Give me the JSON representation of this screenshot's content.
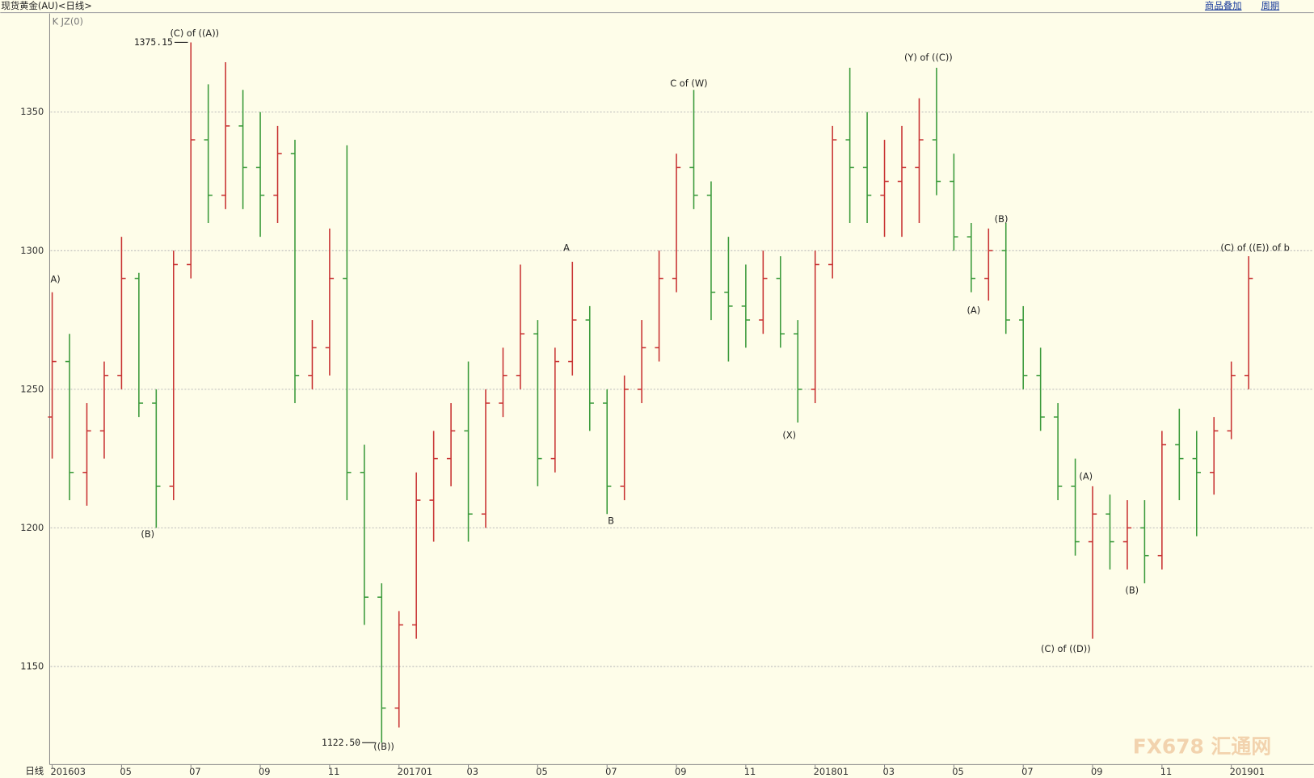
{
  "chart_data": {
    "type": "ohlc",
    "title": "现货黄金(AU)<日线>",
    "indicator": "K  JZ(0)",
    "toolbar": [
      "商品叠加",
      "周期"
    ],
    "period_label": "日线",
    "watermark": "FX678 汇通网",
    "categories": [
      "201603",
      null,
      null,
      null,
      "05",
      null,
      null,
      null,
      "07",
      null,
      null,
      null,
      "09",
      null,
      null,
      null,
      "11",
      null,
      null,
      null,
      "201701",
      null,
      null,
      null,
      "03",
      null,
      null,
      null,
      "05",
      null,
      null,
      null,
      "07",
      null,
      null,
      null,
      "09",
      null,
      null,
      null,
      "11",
      null,
      null,
      null,
      "201801",
      null,
      null,
      null,
      "03",
      null,
      null,
      null,
      "05",
      null,
      null,
      null,
      "07",
      null,
      null,
      null,
      "09",
      null,
      null,
      null,
      "11",
      null,
      null,
      null,
      "201901",
      null
    ],
    "ohlc": [
      [
        1240,
        1285,
        1225,
        1260
      ],
      [
        1260,
        1270,
        1210,
        1220
      ],
      [
        1220,
        1245,
        1208,
        1235
      ],
      [
        1235,
        1260,
        1225,
        1255
      ],
      [
        1255,
        1305,
        1250,
        1290
      ],
      [
        1290,
        1292,
        1240,
        1245
      ],
      [
        1245,
        1250,
        1200,
        1215
      ],
      [
        1215,
        1300,
        1210,
        1295
      ],
      [
        1295,
        1375.15,
        1290,
        1340
      ],
      [
        1340,
        1360,
        1310,
        1320
      ],
      [
        1320,
        1368,
        1315,
        1345
      ],
      [
        1345,
        1358,
        1315,
        1330
      ],
      [
        1330,
        1350,
        1305,
        1320
      ],
      [
        1320,
        1345,
        1310,
        1335
      ],
      [
        1335,
        1340,
        1245,
        1255
      ],
      [
        1255,
        1275,
        1250,
        1265
      ],
      [
        1265,
        1308,
        1255,
        1290
      ],
      [
        1290,
        1338,
        1210,
        1220
      ],
      [
        1220,
        1230,
        1165,
        1175
      ],
      [
        1175,
        1180,
        1122.5,
        1135
      ],
      [
        1135,
        1170,
        1128,
        1165
      ],
      [
        1165,
        1220,
        1160,
        1210
      ],
      [
        1210,
        1235,
        1195,
        1225
      ],
      [
        1225,
        1245,
        1215,
        1235
      ],
      [
        1235,
        1260,
        1195,
        1205
      ],
      [
        1205,
        1250,
        1200,
        1245
      ],
      [
        1245,
        1265,
        1240,
        1255
      ],
      [
        1255,
        1295,
        1250,
        1270
      ],
      [
        1270,
        1275,
        1215,
        1225
      ],
      [
        1225,
        1265,
        1220,
        1260
      ],
      [
        1260,
        1296,
        1255,
        1275
      ],
      [
        1275,
        1280,
        1235,
        1245
      ],
      [
        1245,
        1250,
        1205,
        1215
      ],
      [
        1215,
        1255,
        1210,
        1250
      ],
      [
        1250,
        1275,
        1245,
        1265
      ],
      [
        1265,
        1300,
        1260,
        1290
      ],
      [
        1290,
        1335,
        1285,
        1330
      ],
      [
        1330,
        1358,
        1315,
        1320
      ],
      [
        1320,
        1325,
        1275,
        1285
      ],
      [
        1285,
        1305,
        1260,
        1280
      ],
      [
        1280,
        1295,
        1265,
        1275
      ],
      [
        1275,
        1300,
        1270,
        1290
      ],
      [
        1290,
        1298,
        1265,
        1270
      ],
      [
        1270,
        1275,
        1238,
        1250
      ],
      [
        1250,
        1300,
        1245,
        1295
      ],
      [
        1295,
        1345,
        1290,
        1340
      ],
      [
        1340,
        1366,
        1310,
        1330
      ],
      [
        1330,
        1350,
        1310,
        1320
      ],
      [
        1320,
        1340,
        1305,
        1325
      ],
      [
        1325,
        1345,
        1305,
        1330
      ],
      [
        1330,
        1355,
        1310,
        1340
      ],
      [
        1340,
        1366,
        1320,
        1325
      ],
      [
        1325,
        1335,
        1300,
        1305
      ],
      [
        1305,
        1310,
        1285,
        1290
      ],
      [
        1290,
        1308,
        1282,
        1300
      ],
      [
        1300,
        1310,
        1270,
        1275
      ],
      [
        1275,
        1280,
        1250,
        1255
      ],
      [
        1255,
        1265,
        1235,
        1240
      ],
      [
        1240,
        1245,
        1210,
        1215
      ],
      [
        1215,
        1225,
        1190,
        1195
      ],
      [
        1195,
        1215,
        1160,
        1205
      ],
      [
        1205,
        1212,
        1185,
        1195
      ],
      [
        1195,
        1210,
        1185,
        1200
      ],
      [
        1200,
        1210,
        1180,
        1190
      ],
      [
        1190,
        1235,
        1185,
        1230
      ],
      [
        1230,
        1243,
        1210,
        1225
      ],
      [
        1225,
        1235,
        1197,
        1220
      ],
      [
        1220,
        1240,
        1212,
        1235
      ],
      [
        1235,
        1260,
        1232,
        1255
      ],
      [
        1255,
        1298,
        1250,
        1290
      ]
    ],
    "up_color": "#c83232",
    "down_color": "#3a9a3a",
    "ylim": [
      1114.6,
      1385
    ],
    "yticks": [
      1150,
      1200,
      1250,
      1300,
      1350
    ],
    "grid": true,
    "annotations": [
      "A)",
      "(B)",
      "(C) of ((A))",
      "((B))",
      "A",
      "B",
      "C of (W)",
      "(X)",
      "(Y) of ((C))",
      "(B)",
      "(A)",
      "(A)",
      "(C) of ((D))",
      "(B)",
      "(C) of ((E)) of b"
    ],
    "high_marker": 1375.15,
    "low_marker": {
      "value": 1122.5,
      "label": "1122.50"
    }
  }
}
